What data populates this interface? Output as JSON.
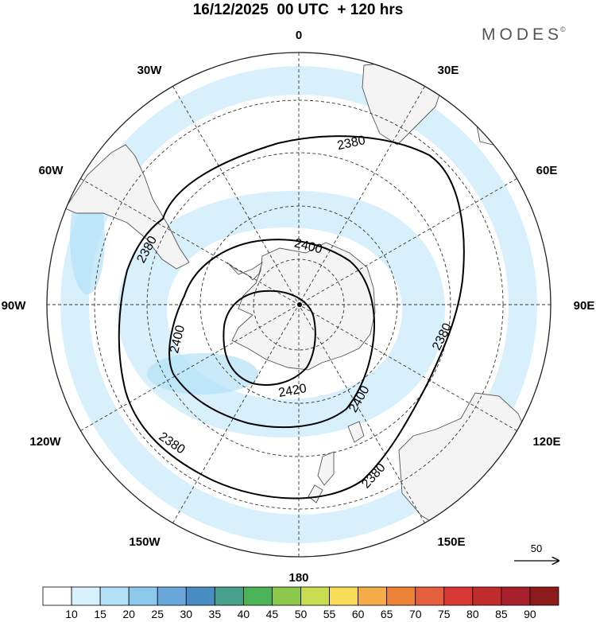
{
  "title": "16/12/2025  00 UTC  + 120 hrs",
  "logo": {
    "text": "MODES",
    "mark": "©"
  },
  "longitude_labels": {
    "deg0": "0",
    "deg30e": "30E",
    "deg60e": "60E",
    "deg90e": "90E",
    "deg120e": "120E",
    "deg150e": "150E",
    "deg180": "180",
    "deg150w": "150W",
    "deg120w": "120W",
    "deg90w": "90W",
    "deg60w": "60W",
    "deg30w": "30W"
  },
  "contours": [
    {
      "value": 2380,
      "labels": [
        "2380",
        "2380",
        "2380",
        "2380",
        "2380"
      ]
    },
    {
      "value": 2400,
      "labels": [
        "2400",
        "2400",
        "2400"
      ]
    },
    {
      "value": 2420,
      "labels": [
        "2420"
      ]
    }
  ],
  "vector_reference": {
    "value": "50"
  },
  "colorbar": {
    "labels": [
      "10",
      "15",
      "20",
      "25",
      "30",
      "35",
      "40",
      "45",
      "50",
      "55",
      "60",
      "65",
      "70",
      "75",
      "80",
      "85",
      "90"
    ],
    "colors": [
      "#ffffff",
      "#d8f0fc",
      "#b4e1f8",
      "#8cc8ec",
      "#6aa8dc",
      "#4a8cc4",
      "#47a08c",
      "#4cb458",
      "#8cc84c",
      "#c8dc50",
      "#f8dc58",
      "#f4ac48",
      "#ec8238",
      "#e4603c",
      "#d83834",
      "#c02c2c",
      "#a8202c",
      "#8c1c1c"
    ]
  },
  "colors": {
    "shading_light": "#d8f0fc",
    "shading_mid": "#b4e1f8",
    "land": "#f4f4f4",
    "coast": "#555555",
    "contour": "#000000"
  }
}
